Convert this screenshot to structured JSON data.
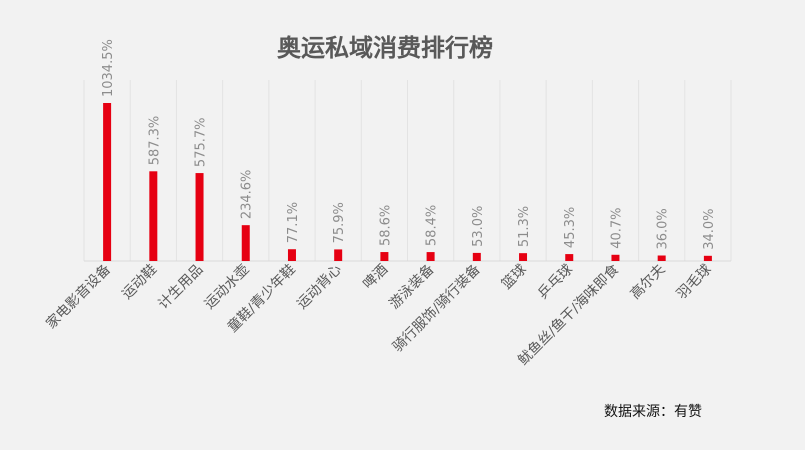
{
  "chart_data": {
    "type": "bar",
    "title": "奥运私域消费排行榜",
    "categories": [
      "家电影音设备",
      "运动鞋",
      "计生用品",
      "运动水壶",
      "童鞋/青少年鞋",
      "运动背心",
      "啤酒",
      "游泳装备",
      "骑行服饰/骑行装备",
      "篮球",
      "乒乓球",
      "鱿鱼丝/鱼干/海味即食",
      "高尔夫",
      "羽毛球"
    ],
    "values": [
      1034.5,
      587.3,
      575.7,
      234.6,
      77.1,
      75.9,
      58.6,
      58.4,
      53.0,
      51.3,
      45.3,
      40.7,
      36.0,
      34.0
    ],
    "value_labels": [
      "1034.5%",
      "587.3%",
      "575.7%",
      "234.6%",
      "77.1%",
      "75.9%",
      "58.6%",
      "58.4%",
      "53.0%",
      "51.3%",
      "45.3%",
      "40.7%",
      "36.0%",
      "34.0%"
    ],
    "ylim": [
      0,
      1040
    ],
    "grid": "vertical",
    "bar_color": "#e60012",
    "source": "数据来源：有赞"
  }
}
